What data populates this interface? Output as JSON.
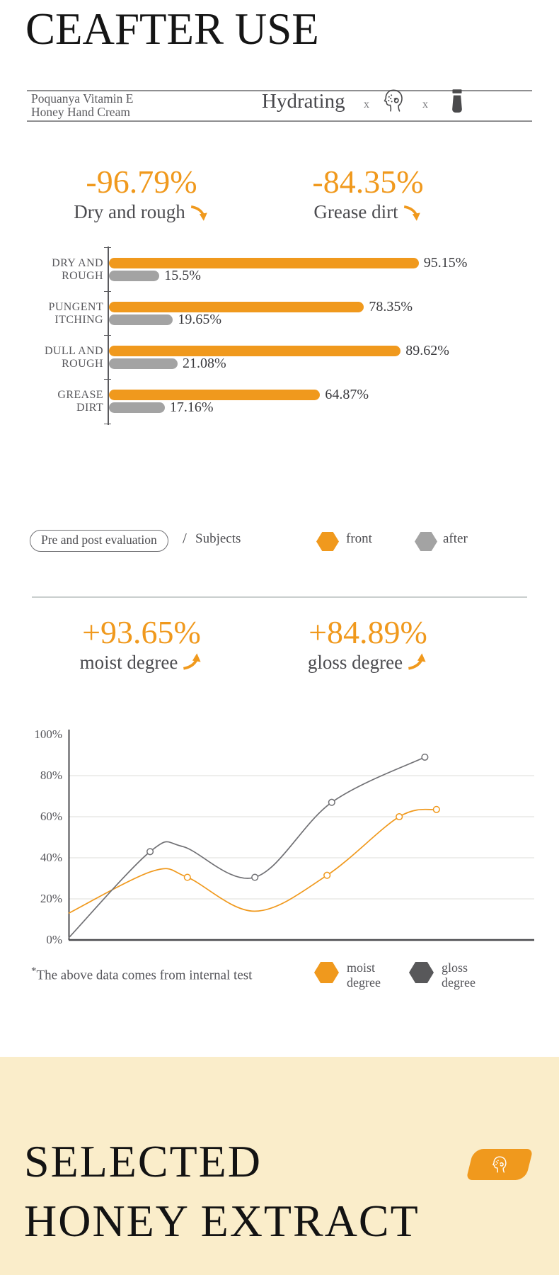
{
  "colors": {
    "orange": "#F0991D",
    "bar_gray": "#A3A3A3",
    "curve_gray": "#707074",
    "hex_dark": "#58585A",
    "beige": "#FAEDCA"
  },
  "header": {
    "title": "CEAFTER USE",
    "product_line1": "Poquanya Vitamin E",
    "product_line2": "Honey Hand Cream",
    "feature": "Hydrating",
    "times": "x",
    "icons": {
      "face": "face-absorption-icon",
      "tube": "cream-tube-icon"
    }
  },
  "stats_decrease": [
    {
      "value": "-96.79%",
      "label": "Dry and rough"
    },
    {
      "value": "-84.35%",
      "label": "Grease dirt"
    }
  ],
  "stats_increase": [
    {
      "value": "+93.65%",
      "label": "moist degree"
    },
    {
      "value": "+84.89%",
      "label": "gloss degree"
    }
  ],
  "legend1": {
    "box_label": "Pre and post evaluation",
    "separator": "/",
    "subjects_label": "Subjects",
    "series": [
      {
        "label": "front",
        "color": "#F0991D"
      },
      {
        "label": "after",
        "color": "#A3A3A3"
      }
    ]
  },
  "legend2": {
    "series": [
      {
        "line1": "moist",
        "line2": "degree",
        "color": "#F0991D"
      },
      {
        "line1": "gloss",
        "line2": "degree",
        "color": "#58585A"
      }
    ]
  },
  "footnote": {
    "asterisk": "*",
    "text": "The above data comes from internal test"
  },
  "bottom": {
    "heading_line1": "SELECTED",
    "heading_line2": "HONEY EXTRACT"
  },
  "chart_data": [
    {
      "type": "bar",
      "orientation": "horizontal",
      "xlim": [
        0,
        100
      ],
      "categories": [
        "DRY AND ROUGH",
        "PUNGENT ITCHING",
        "DULL AND ROUGH",
        "GREASE DIRT"
      ],
      "cat_lines": [
        [
          "DRY AND",
          "ROUGH"
        ],
        [
          "PUNGENT",
          "ITCHING"
        ],
        [
          "DULL AND",
          "ROUGH"
        ],
        [
          "GREASE",
          "DIRT"
        ]
      ],
      "series": [
        {
          "name": "front",
          "color": "#F0991D",
          "values": [
            95.15,
            78.35,
            89.62,
            64.87
          ]
        },
        {
          "name": "after",
          "color": "#A3A3A3",
          "values": [
            15.5,
            19.65,
            21.08,
            17.16
          ]
        }
      ],
      "value_labels": [
        [
          "95.15%",
          "15.5%"
        ],
        [
          "78.35%",
          "19.65%"
        ],
        [
          "89.62%",
          "21.08%"
        ],
        [
          "64.87%",
          "17.16%"
        ]
      ]
    },
    {
      "type": "line",
      "y_ticks": [
        "100%",
        "80%",
        "60%",
        "40%",
        "20%",
        "0%"
      ],
      "ylim": [
        0,
        100
      ],
      "grid": "horizontal",
      "legend_position": "below-right",
      "series": [
        {
          "name": "moist degree",
          "color": "#F0991D",
          "points": [
            [
              0,
              13,
              0
            ],
            [
              0.18,
              33.5,
              0
            ],
            [
              0.255,
              30.5,
              1
            ],
            [
              0.4,
              14,
              0
            ],
            [
              0.555,
              31.5,
              1
            ],
            [
              0.71,
              60,
              1
            ],
            [
              0.79,
              63.5,
              1
            ]
          ]
        },
        {
          "name": "gloss degree",
          "color": "#707074",
          "points": [
            [
              0,
              1,
              0
            ],
            [
              0.175,
              43,
              1
            ],
            [
              0.245,
              45.5,
              0
            ],
            [
              0.4,
              30.5,
              1
            ],
            [
              0.565,
              67,
              1
            ],
            [
              0.765,
              89,
              1
            ]
          ]
        }
      ]
    }
  ]
}
